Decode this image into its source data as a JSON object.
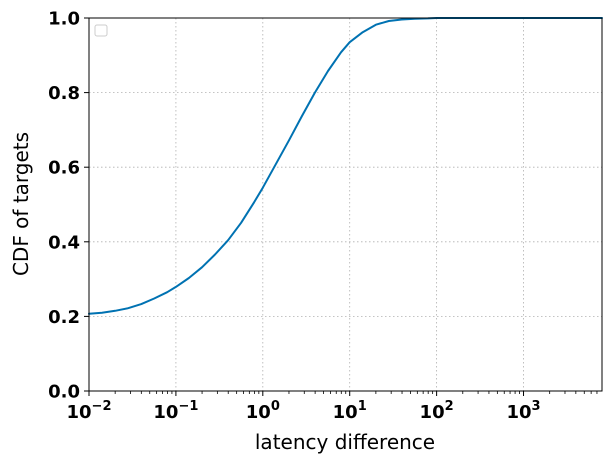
{
  "chart_data": {
    "type": "line",
    "title": "",
    "xlabel": "latency difference",
    "ylabel": "CDF of targets",
    "x_scale": "log",
    "xlim": [
      0.01,
      8000
    ],
    "ylim": [
      0.0,
      1.0
    ],
    "x_ticks": [
      0.01,
      0.1,
      1,
      10,
      100,
      1000
    ],
    "x_tick_labels": [
      {
        "base": "10",
        "exp": "−2"
      },
      {
        "base": "10",
        "exp": "−1"
      },
      {
        "base": "10",
        "exp": "0"
      },
      {
        "base": "10",
        "exp": "1"
      },
      {
        "base": "10",
        "exp": "2"
      },
      {
        "base": "10",
        "exp": "3"
      }
    ],
    "y_ticks": [
      0.0,
      0.2,
      0.4,
      0.6,
      0.8,
      1.0
    ],
    "y_tick_labels": [
      "0.0",
      "0.2",
      "0.4",
      "0.6",
      "0.8",
      "1.0"
    ],
    "grid": true,
    "legend": "upper-left (empty)",
    "series": [
      {
        "color": "#0072b2",
        "x": [
          0.01,
          0.0141,
          0.02,
          0.0282,
          0.04,
          0.0562,
          0.0794,
          0.1,
          0.141,
          0.2,
          0.282,
          0.398,
          0.562,
          0.794,
          1.0,
          1.41,
          2.0,
          2.82,
          3.98,
          5.62,
          7.94,
          10.0,
          14.1,
          20.0,
          28.2,
          39.8,
          56.2,
          79.4,
          100,
          200,
          1000,
          8000
        ],
        "y": [
          0.207,
          0.21,
          0.215,
          0.222,
          0.233,
          0.248,
          0.265,
          0.279,
          0.303,
          0.332,
          0.366,
          0.404,
          0.451,
          0.506,
          0.545,
          0.608,
          0.672,
          0.737,
          0.8,
          0.858,
          0.908,
          0.935,
          0.962,
          0.982,
          0.992,
          0.996,
          0.998,
          0.999,
          1.0,
          1.0,
          1.0,
          1.0
        ]
      }
    ]
  }
}
